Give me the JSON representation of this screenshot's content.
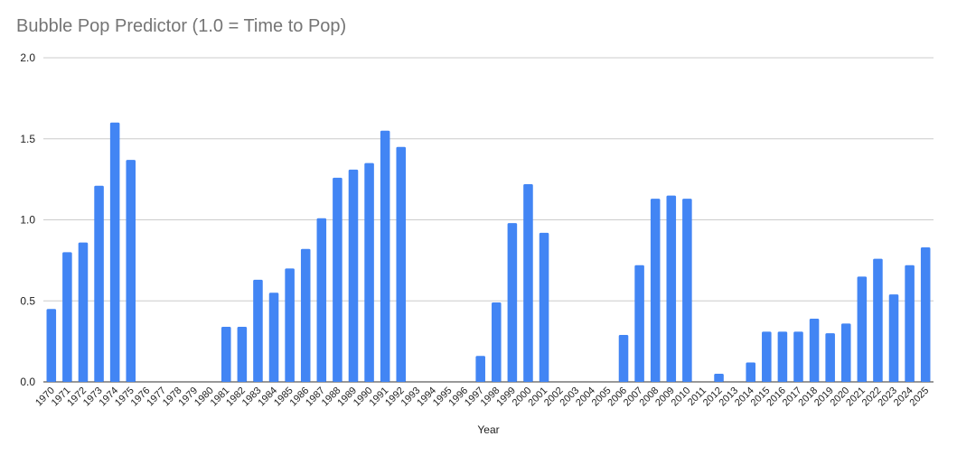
{
  "chart_data": {
    "type": "bar",
    "title": "Bubble Pop Predictor (1.0 = Time to Pop)",
    "xlabel": "Year",
    "ylabel": "",
    "ylim": [
      0,
      2.0
    ],
    "yticks": [
      "0.0",
      "0.5",
      "1.0",
      "1.5",
      "2.0"
    ],
    "grid": true,
    "bar_color": "#4285f4",
    "categories": [
      "1970",
      "1971",
      "1972",
      "1973",
      "1974",
      "1975",
      "1976",
      "1977",
      "1978",
      "1979",
      "1980",
      "1981",
      "1982",
      "1983",
      "1984",
      "1985",
      "1986",
      "1987",
      "1988",
      "1989",
      "1990",
      "1991",
      "1992",
      "1993",
      "1994",
      "1995",
      "1996",
      "1997",
      "1998",
      "1999",
      "2000",
      "2001",
      "2002",
      "2003",
      "2004",
      "2005",
      "2006",
      "2007",
      "2008",
      "2009",
      "2010",
      "2011",
      "2012",
      "2013",
      "2014",
      "2015",
      "2016",
      "2017",
      "2018",
      "2019",
      "2020",
      "2021",
      "2022",
      "2023",
      "2024",
      "2025"
    ],
    "values": [
      0.45,
      0.8,
      0.86,
      1.21,
      1.6,
      1.37,
      0,
      0,
      0,
      0,
      0,
      0.34,
      0.34,
      0.63,
      0.55,
      0.7,
      0.82,
      1.01,
      1.26,
      1.31,
      1.35,
      1.55,
      1.45,
      0,
      0,
      0,
      0,
      0.16,
      0.49,
      0.98,
      1.22,
      0.92,
      0,
      0,
      0,
      0,
      0.29,
      0.72,
      1.13,
      1.15,
      1.13,
      0,
      0.05,
      0,
      0.12,
      0.31,
      0.31,
      0.31,
      0.39,
      0.3,
      0.36,
      0.65,
      0.76,
      0.54,
      0.72,
      0.83
    ]
  }
}
